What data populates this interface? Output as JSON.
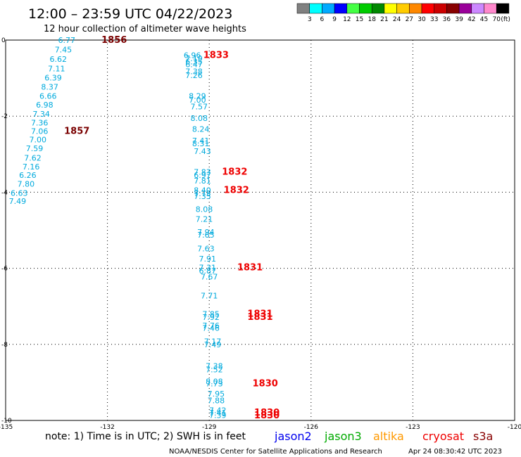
{
  "chart_data": {
    "type": "scatter",
    "title": "12:00 – 23:59 UTC 04/22/2023",
    "subtitle": "12 hour collection of altimeter wave heights",
    "xlim": [
      -135,
      -120
    ],
    "ylim": [
      -10,
      0
    ],
    "x_ticks": [
      "-135",
      "-132",
      "-129",
      "-126",
      "-123",
      "-120"
    ],
    "y_ticks": [
      "0",
      "-2",
      "-4",
      "-6",
      "-8",
      "-10"
    ],
    "grid": true,
    "colorbar": {
      "unit": "(ft)",
      "labels": [
        "3",
        "6",
        "9",
        "12",
        "15",
        "18",
        "21",
        "24",
        "27",
        "30",
        "33",
        "36",
        "39",
        "42",
        "45",
        "70"
      ],
      "colors": [
        "#808080",
        "#00ffff",
        "#00aaff",
        "#0000ff",
        "#44ff44",
        "#00cc00",
        "#008800",
        "#ffff00",
        "#ffcc00",
        "#ff8800",
        "#ff0000",
        "#cc0000",
        "#880000",
        "#990099",
        "#cc88ff",
        "#ff88cc",
        "#000000"
      ]
    },
    "point_color": "#00aadd",
    "series": [
      {
        "track": "western",
        "points": [
          {
            "lon": -133.2,
            "lat": 0.0,
            "v": "6.77"
          },
          {
            "lon": -133.3,
            "lat": -0.25,
            "v": "7.45"
          },
          {
            "lon": -133.45,
            "lat": -0.5,
            "v": "6.62"
          },
          {
            "lon": -133.5,
            "lat": -0.75,
            "v": "7.11"
          },
          {
            "lon": -133.6,
            "lat": -0.99,
            "v": "6.39"
          },
          {
            "lon": -133.7,
            "lat": -1.23,
            "v": "8.37"
          },
          {
            "lon": -133.75,
            "lat": -1.47,
            "v": "6.66"
          },
          {
            "lon": -133.85,
            "lat": -1.7,
            "v": "6.98"
          },
          {
            "lon": -133.95,
            "lat": -1.94,
            "v": "7.34"
          },
          {
            "lon": -134.0,
            "lat": -2.17,
            "v": "7.36"
          },
          {
            "lon": -134.0,
            "lat": -2.39,
            "v": "7.06"
          },
          {
            "lon": -134.05,
            "lat": -2.62,
            "v": "7.00"
          },
          {
            "lon": -134.15,
            "lat": -2.85,
            "v": "7.59"
          },
          {
            "lon": -134.2,
            "lat": -3.1,
            "v": "7.62"
          },
          {
            "lon": -134.25,
            "lat": -3.33,
            "v": "7.16"
          },
          {
            "lon": -134.35,
            "lat": -3.55,
            "v": "6.26"
          },
          {
            "lon": -134.4,
            "lat": -3.78,
            "v": "7.80"
          },
          {
            "lon": -134.6,
            "lat": -4.02,
            "v": "6.63"
          },
          {
            "lon": -134.65,
            "lat": -4.23,
            "v": "7.49"
          }
        ]
      },
      {
        "track": "central",
        "points": [
          {
            "lon": -129.5,
            "lat": -0.4,
            "v": "6.96"
          },
          {
            "lon": -129.45,
            "lat": -0.48,
            "v": "7.19"
          },
          {
            "lon": -129.45,
            "lat": -0.56,
            "v": "6.35"
          },
          {
            "lon": -129.45,
            "lat": -0.64,
            "v": "6.47"
          },
          {
            "lon": -129.45,
            "lat": -0.82,
            "v": "7.38"
          },
          {
            "lon": -129.45,
            "lat": -0.92,
            "v": "7.26"
          },
          {
            "lon": -129.35,
            "lat": -1.47,
            "v": "8.29"
          },
          {
            "lon": -129.35,
            "lat": -1.57,
            "v": "7.00"
          },
          {
            "lon": -129.3,
            "lat": -1.75,
            "v": "7.57"
          },
          {
            "lon": -129.3,
            "lat": -2.05,
            "v": "8.08"
          },
          {
            "lon": -129.25,
            "lat": -2.34,
            "v": "8.24"
          },
          {
            "lon": -129.25,
            "lat": -2.64,
            "v": "7.41"
          },
          {
            "lon": -129.25,
            "lat": -2.72,
            "v": "8.31"
          },
          {
            "lon": -129.2,
            "lat": -2.92,
            "v": "7.43"
          },
          {
            "lon": -129.2,
            "lat": -3.47,
            "v": "7.83"
          },
          {
            "lon": -129.2,
            "lat": -3.55,
            "v": "6.97"
          },
          {
            "lon": -129.2,
            "lat": -3.7,
            "v": "7.81"
          },
          {
            "lon": -129.2,
            "lat": -3.95,
            "v": "8.40"
          },
          {
            "lon": -129.2,
            "lat": -4.03,
            "v": "7.75"
          },
          {
            "lon": -129.2,
            "lat": -4.1,
            "v": "7.35"
          },
          {
            "lon": -129.15,
            "lat": -4.45,
            "v": "8.08"
          },
          {
            "lon": -129.15,
            "lat": -4.7,
            "v": "7.21"
          },
          {
            "lon": -129.1,
            "lat": -5.05,
            "v": "7.94"
          },
          {
            "lon": -129.1,
            "lat": -5.12,
            "v": "7.65"
          },
          {
            "lon": -129.1,
            "lat": -5.48,
            "v": "7.63"
          },
          {
            "lon": -129.05,
            "lat": -5.75,
            "v": "7.91"
          },
          {
            "lon": -129.05,
            "lat": -5.98,
            "v": "7.31"
          },
          {
            "lon": -129.05,
            "lat": -6.06,
            "v": "6.87"
          },
          {
            "lon": -129.0,
            "lat": -6.22,
            "v": "7.67"
          },
          {
            "lon": -129.0,
            "lat": -6.72,
            "v": "7.71"
          },
          {
            "lon": -128.95,
            "lat": -7.2,
            "v": "7.85"
          },
          {
            "lon": -128.95,
            "lat": -7.28,
            "v": "7.92"
          },
          {
            "lon": -128.95,
            "lat": -7.5,
            "v": "7.76"
          },
          {
            "lon": -128.95,
            "lat": -7.57,
            "v": "7.46"
          },
          {
            "lon": -128.9,
            "lat": -7.92,
            "v": "7.17"
          },
          {
            "lon": -128.9,
            "lat": -8.0,
            "v": "7.49"
          },
          {
            "lon": -128.85,
            "lat": -8.57,
            "v": "7.38"
          },
          {
            "lon": -128.85,
            "lat": -8.66,
            "v": "7.52"
          },
          {
            "lon": -128.85,
            "lat": -8.97,
            "v": "8.08"
          },
          {
            "lon": -128.85,
            "lat": -9.03,
            "v": "7.73"
          },
          {
            "lon": -128.8,
            "lat": -9.3,
            "v": "7.95"
          },
          {
            "lon": -128.8,
            "lat": -9.47,
            "v": "7.88"
          },
          {
            "lon": -128.75,
            "lat": -9.73,
            "v": "7.42"
          },
          {
            "lon": -128.75,
            "lat": -9.8,
            "v": "7.41"
          },
          {
            "lon": -128.75,
            "lat": -9.86,
            "v": "7.39"
          }
        ]
      }
    ],
    "time_labels": [
      {
        "lon": -131.8,
        "lat": 0.0,
        "t": "1856",
        "color": "#7a0000"
      },
      {
        "lon": -132.9,
        "lat": -2.39,
        "t": "1857",
        "color": "#7a0000"
      },
      {
        "lon": -128.8,
        "lat": -0.4,
        "t": "1833",
        "color": "#ee0000"
      },
      {
        "lon": -128.25,
        "lat": -3.47,
        "t": "1832",
        "color": "#ee0000"
      },
      {
        "lon": -128.2,
        "lat": -3.95,
        "t": "1832",
        "color": "#ee0000"
      },
      {
        "lon": -127.8,
        "lat": -5.98,
        "t": "1831",
        "color": "#ee0000"
      },
      {
        "lon": -127.5,
        "lat": -7.2,
        "t": "1831",
        "color": "#ee0000"
      },
      {
        "lon": -127.5,
        "lat": -7.28,
        "t": "1831",
        "color": "#ee0000"
      },
      {
        "lon": -127.35,
        "lat": -9.03,
        "t": "1830",
        "color": "#ee0000"
      },
      {
        "lon": -127.3,
        "lat": -9.8,
        "t": "1830",
        "color": "#ee0000"
      },
      {
        "lon": -127.3,
        "lat": -9.87,
        "t": "1830",
        "color": "#ee0000"
      }
    ],
    "note": "note:  1) Time is in UTC; 2) SWH is in feet",
    "satellites": [
      {
        "name": "jason2",
        "color": "#0000ee"
      },
      {
        "name": "jason3",
        "color": "#00aa00"
      },
      {
        "name": "altika",
        "color": "#ff9900"
      },
      {
        "name": "cryosat",
        "color": "#ee0000"
      },
      {
        "name": "s3a",
        "color": "#880000"
      }
    ],
    "credit": "NOAA/NESDIS Center for Satellite Applications and Research",
    "generated": "Apr 24 08:30:42 UTC 2023"
  }
}
